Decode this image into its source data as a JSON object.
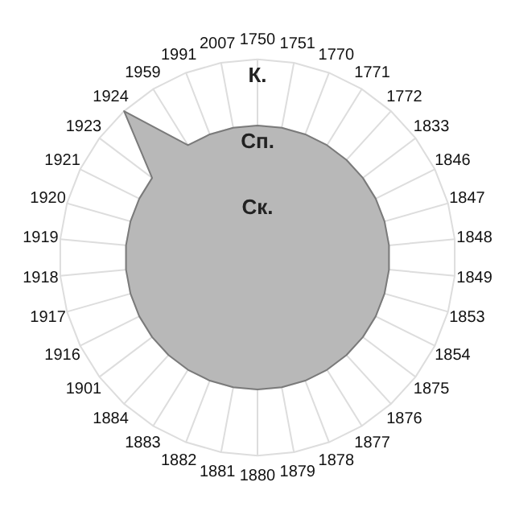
{
  "chart_data": {
    "type": "radar",
    "categories": [
      "1750",
      "1751",
      "1770",
      "1771",
      "1772",
      "1833",
      "1846",
      "1847",
      "1848",
      "1849",
      "1853",
      "1854",
      "1875",
      "1876",
      "1877",
      "1878",
      "1879",
      "1880",
      "1881",
      "1882",
      "1883",
      "1884",
      "1901",
      "1916",
      "1917",
      "1918",
      "1919",
      "1920",
      "1921",
      "1923",
      "1924",
      "1959",
      "1991",
      "2007"
    ],
    "series": [
      {
        "color": "#b8b8b8",
        "values": [
          2,
          2,
          2,
          2,
          2,
          2,
          2,
          2,
          2,
          2,
          2,
          2,
          2,
          2,
          2,
          2,
          2,
          2,
          2,
          2,
          2,
          2,
          2,
          2,
          2,
          2,
          2,
          2,
          2,
          2,
          3,
          2,
          2,
          2
        ]
      }
    ],
    "ylim": [
      0,
      3
    ],
    "yticks": [
      {
        "value": 1,
        "label": "Ск."
      },
      {
        "value": 2,
        "label": "Сп."
      },
      {
        "value": 3,
        "label": "К."
      }
    ],
    "grid": true,
    "marker": "none"
  }
}
